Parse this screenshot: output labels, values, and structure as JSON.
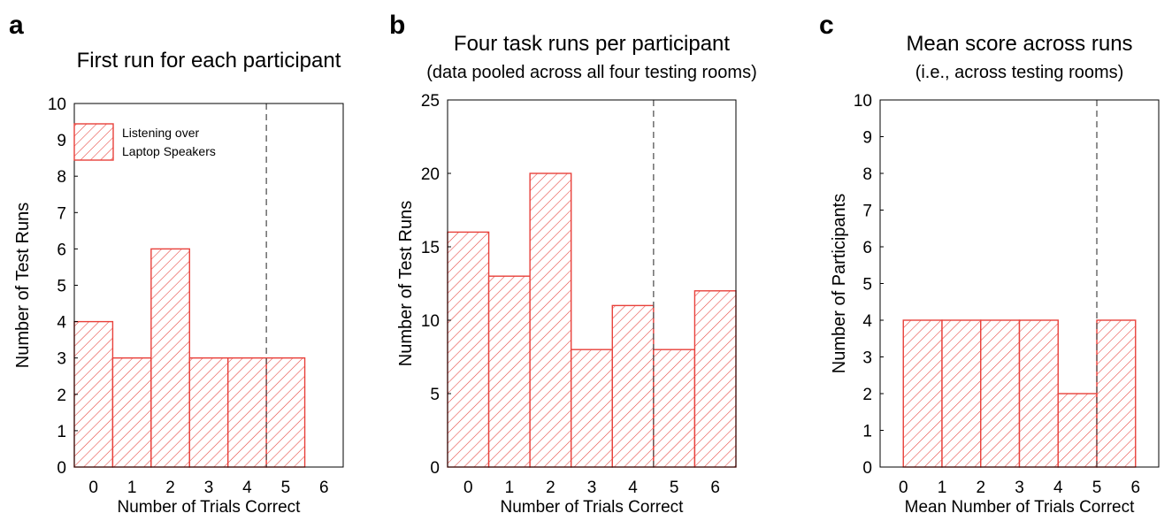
{
  "colors": {
    "bar_stroke": "#e8413b",
    "hatch": "#e8413b",
    "frame": "#000000",
    "threshold_line": "#555555"
  },
  "chart_data": [
    {
      "panel_label": "a",
      "type": "bar",
      "title": "First run for each participant",
      "subtitle": "",
      "xlabel": "Number of Trials Correct",
      "ylabel": "Number of Test Runs",
      "categories": [
        0,
        1,
        2,
        3,
        4,
        5
      ],
      "x_ticks": [
        "0",
        "1",
        "2",
        "3",
        "4",
        "5",
        "6"
      ],
      "values": [
        4,
        3,
        6,
        3,
        3,
        3
      ],
      "xlim": [
        -0.5,
        6.5
      ],
      "ylim": [
        0,
        10
      ],
      "y_ticks": [
        0,
        1,
        2,
        3,
        4,
        5,
        6,
        7,
        8,
        9,
        10
      ],
      "bar_edges": "centered",
      "threshold_x": 4.5,
      "legend": {
        "label": [
          "Listening over",
          "Laptop Speakers"
        ],
        "placement": "top-left"
      },
      "grid": false
    },
    {
      "panel_label": "b",
      "type": "bar",
      "title": "Four task runs per participant",
      "subtitle": "(data pooled across all four testing rooms)",
      "xlabel": "Number of Trials Correct",
      "ylabel": "Number of Test Runs",
      "categories": [
        0,
        1,
        2,
        3,
        4,
        5,
        6
      ],
      "x_ticks": [
        "0",
        "1",
        "2",
        "3",
        "4",
        "5",
        "6"
      ],
      "values": [
        16,
        13,
        20,
        8,
        11,
        8,
        12
      ],
      "xlim": [
        -0.5,
        6.5
      ],
      "ylim": [
        0,
        25
      ],
      "y_ticks": [
        0,
        5,
        10,
        15,
        20,
        25
      ],
      "bar_edges": "centered",
      "threshold_x": 4.5,
      "grid": false
    },
    {
      "panel_label": "c",
      "type": "bar",
      "title": "Mean score across runs",
      "subtitle": "(i.e., across testing rooms)",
      "xlabel": "Mean Number of Trials Correct",
      "ylabel": "Number of Participants",
      "bins": [
        [
          0,
          1
        ],
        [
          1,
          2
        ],
        [
          2,
          3
        ],
        [
          3,
          4
        ],
        [
          4,
          5
        ],
        [
          5,
          6
        ]
      ],
      "x_ticks": [
        "0",
        "1",
        "2",
        "3",
        "4",
        "5",
        "6"
      ],
      "values": [
        4,
        4,
        4,
        4,
        2,
        4
      ],
      "xlim": [
        -0.6,
        6.6
      ],
      "ylim": [
        0,
        10
      ],
      "y_ticks": [
        0,
        1,
        2,
        3,
        4,
        5,
        6,
        7,
        8,
        9,
        10
      ],
      "bar_edges": "bins",
      "threshold_x": 5,
      "grid": false
    }
  ]
}
